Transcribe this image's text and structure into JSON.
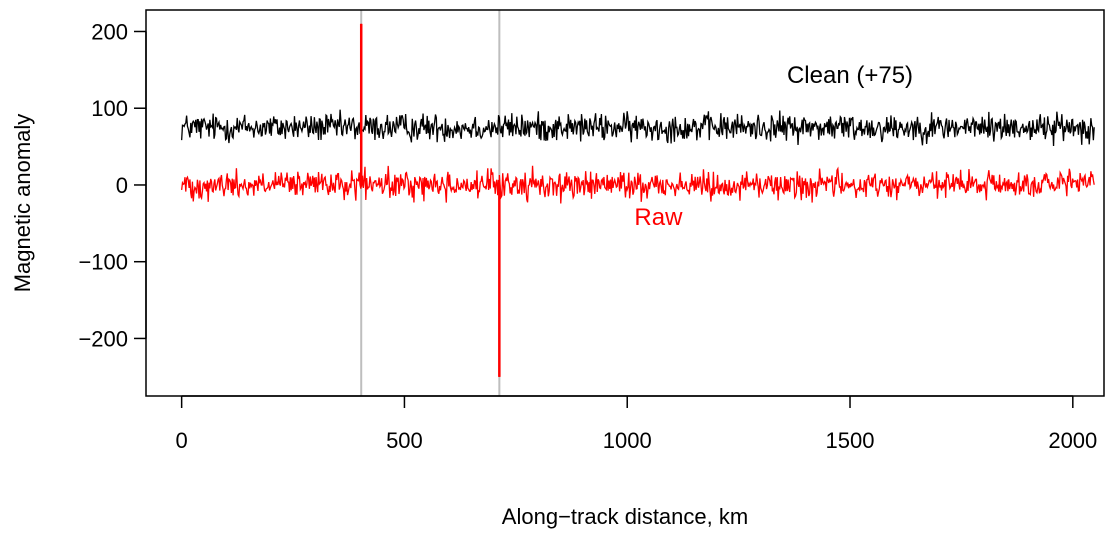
{
  "chart_data": {
    "type": "line",
    "xlabel": "Along−track distance, km",
    "ylabel": "Magnetic anomaly",
    "xlim": [
      -80,
      2070
    ],
    "ylim": [
      -275,
      228
    ],
    "xticks": [
      0,
      500,
      1000,
      1500,
      2000
    ],
    "yticks": [
      -200,
      -100,
      0,
      100,
      200
    ],
    "xtick_labels": [
      "0",
      "500",
      "1000",
      "1500",
      "2000"
    ],
    "ytick_labels": [
      "−200",
      "−100",
      "0",
      "100",
      "200"
    ],
    "grid": false,
    "legend": "none",
    "vertical_lines": [
      {
        "x": 403,
        "color": "#bebebe"
      },
      {
        "x": 713,
        "color": "#bebebe"
      }
    ],
    "series": [
      {
        "name": "Clean (+75)",
        "color": "#000000",
        "x_start": 0,
        "x_end": 2048,
        "offset": 75,
        "noise_amplitude": 15,
        "label_position": [
          1500,
          133
        ]
      },
      {
        "name": "Raw",
        "color": "#ff0000",
        "x_start": 0,
        "x_end": 2048,
        "offset": 0,
        "noise_amplitude": 15,
        "spikes": [
          {
            "x": 403,
            "y": 210
          },
          {
            "x": 713,
            "y": -250
          }
        ],
        "label_position": [
          1070,
          -52
        ]
      }
    ]
  }
}
